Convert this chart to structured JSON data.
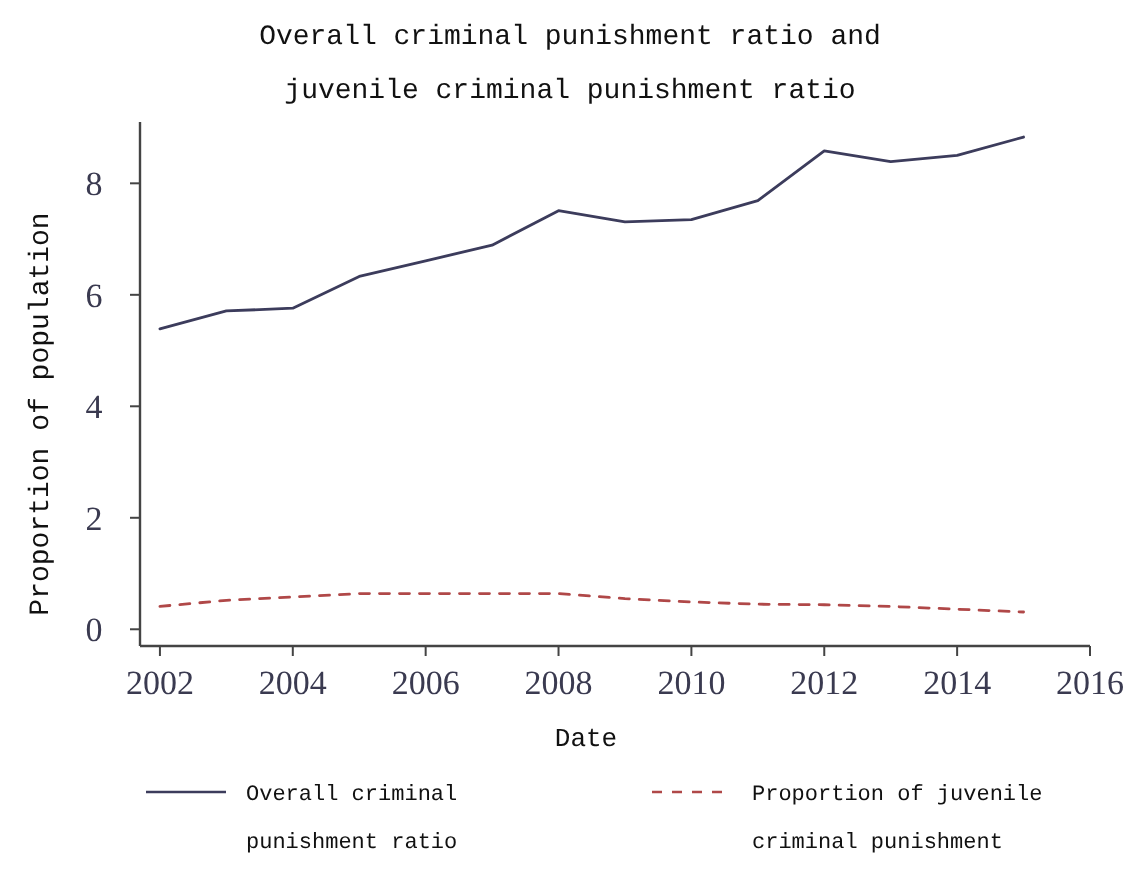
{
  "chart_data": {
    "type": "line",
    "title": "Overall criminal punishment ratio and juvenile criminal punishment ratio",
    "xlabel": "Date",
    "ylabel": "Proportion of population",
    "x": [
      2002,
      2003,
      2004,
      2005,
      2006,
      2007,
      2008,
      2009,
      2010,
      2011,
      2012,
      2013,
      2014,
      2015
    ],
    "series": [
      {
        "name": "Overall criminal punishment ratio",
        "color": "#3c3c5c",
        "line_style": "solid",
        "values": [
          5.39,
          5.71,
          5.76,
          6.33,
          6.61,
          6.89,
          7.51,
          7.31,
          7.35,
          7.69,
          8.58,
          8.39,
          8.5,
          8.83
        ]
      },
      {
        "name": "Proportion of juvenile criminal punishment",
        "color": "#b04848",
        "line_style": "dashed",
        "values": [
          0.41,
          0.52,
          0.58,
          0.64,
          0.64,
          0.64,
          0.64,
          0.55,
          0.49,
          0.45,
          0.44,
          0.41,
          0.36,
          0.31
        ]
      }
    ],
    "xlim": [
      2001.7,
      2016
    ],
    "xticks": [
      2002,
      2004,
      2006,
      2008,
      2010,
      2012,
      2014,
      2016
    ],
    "ylim": [
      -0.3,
      9.1
    ],
    "yticks": [
      0,
      2,
      4,
      6,
      8
    ],
    "grid": false,
    "legend": "bottom",
    "marker": "none"
  }
}
